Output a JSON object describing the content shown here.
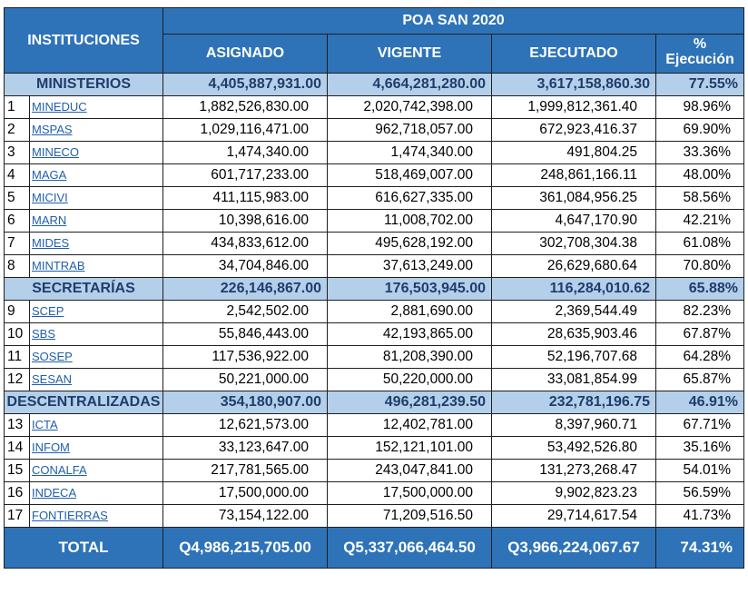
{
  "header": {
    "instituciones": "INSTITUCIONES",
    "title": "POA SAN 2020",
    "col_asignado": "ASIGNADO",
    "col_vigente": "VIGENTE",
    "col_ejecutado": "EJECUTADO",
    "col_pct_symbol": "%",
    "col_pct_label": "Ejecución"
  },
  "sections": [
    {
      "name": "MINISTERIOS",
      "asignado": "4,405,887,931.00",
      "vigente": "4,664,281,280.00",
      "ejecutado": "3,617,158,860.30",
      "pct": "77.55%",
      "rows": [
        {
          "n": "1",
          "inst": "MINEDUC",
          "asignado": "1,882,526,830.00",
          "vigente": "2,020,742,398.00",
          "ejecutado": "1,999,812,361.40",
          "pct": "98.96%"
        },
        {
          "n": "2",
          "inst": "MSPAS",
          "asignado": "1,029,116,471.00",
          "vigente": "962,718,057.00",
          "ejecutado": "672,923,416.37",
          "pct": "69.90%"
        },
        {
          "n": "3",
          "inst": "MINECO",
          "asignado": "1,474,340.00",
          "vigente": "1,474,340.00",
          "ejecutado": "491,804.25",
          "pct": "33.36%"
        },
        {
          "n": "4",
          "inst": "MAGA",
          "asignado": "601,717,233.00",
          "vigente": "518,469,007.00",
          "ejecutado": "248,861,166.11",
          "pct": "48.00%"
        },
        {
          "n": "5",
          "inst": "MICIVI",
          "asignado": "411,115,983.00",
          "vigente": "616,627,335.00",
          "ejecutado": "361,084,956.25",
          "pct": "58.56%"
        },
        {
          "n": "6",
          "inst": "MARN",
          "asignado": "10,398,616.00",
          "vigente": "11,008,702.00",
          "ejecutado": "4,647,170.90",
          "pct": "42.21%"
        },
        {
          "n": "7",
          "inst": "MIDES",
          "asignado": "434,833,612.00",
          "vigente": "495,628,192.00",
          "ejecutado": "302,708,304.38",
          "pct": "61.08%"
        },
        {
          "n": "8",
          "inst": "MINTRAB",
          "asignado": "34,704,846.00",
          "vigente": "37,613,249.00",
          "ejecutado": "26,629,680.64",
          "pct": "70.80%"
        }
      ]
    },
    {
      "name": "SECRETARÍAS",
      "asignado": "226,146,867.00",
      "vigente": "176,503,945.00",
      "ejecutado": "116,284,010.62",
      "pct": "65.88%",
      "rows": [
        {
          "n": "9",
          "inst": "SCEP",
          "asignado": "2,542,502.00",
          "vigente": "2,881,690.00",
          "ejecutado": "2,369,544.49",
          "pct": "82.23%"
        },
        {
          "n": "10",
          "inst": "SBS",
          "asignado": "55,846,443.00",
          "vigente": "42,193,865.00",
          "ejecutado": "28,635,903.46",
          "pct": "67.87%"
        },
        {
          "n": "11",
          "inst": "SOSEP",
          "asignado": "117,536,922.00",
          "vigente": "81,208,390.00",
          "ejecutado": "52,196,707.68",
          "pct": "64.28%"
        },
        {
          "n": "12",
          "inst": "SESAN",
          "asignado": "50,221,000.00",
          "vigente": "50,220,000.00",
          "ejecutado": "33,081,854.99",
          "pct": "65.87%"
        }
      ]
    },
    {
      "name": "DESCENTRALIZADAS",
      "asignado": "354,180,907.00",
      "vigente": "496,281,239.50",
      "ejecutado": "232,781,196.75",
      "pct": "46.91%",
      "rows": [
        {
          "n": "13",
          "inst": "ICTA",
          "asignado": "12,621,573.00",
          "vigente": "12,402,781.00",
          "ejecutado": "8,397,960.71",
          "pct": "67.71%"
        },
        {
          "n": "14",
          "inst": "INFOM",
          "asignado": "33,123,647.00",
          "vigente": "152,121,101.00",
          "ejecutado": "53,492,526.80",
          "pct": "35.16%"
        },
        {
          "n": "15",
          "inst": "CONALFA",
          "asignado": "217,781,565.00",
          "vigente": "243,047,841.00",
          "ejecutado": "131,273,268.47",
          "pct": "54.01%"
        },
        {
          "n": "16",
          "inst": "INDECA",
          "asignado": "17,500,000.00",
          "vigente": "17,500,000.00",
          "ejecutado": "9,902,823.23",
          "pct": "56.59%"
        },
        {
          "n": "17",
          "inst": "FONTIERRAS",
          "asignado": "73,154,122.00",
          "vigente": "71,209,516.50",
          "ejecutado": "29,714,617.54",
          "pct": "41.73%"
        }
      ]
    }
  ],
  "total": {
    "label": "TOTAL",
    "asignado": "Q4,986,215,705.00",
    "vigente": "Q5,337,066,464.50",
    "ejecutado": "Q3,966,224,067.67",
    "pct": "74.31%"
  },
  "colors": {
    "header_bg": "#2e73b8",
    "section_bg": "#b4cfe9",
    "section_text": "#1f3d6b",
    "link": "#1f5fae"
  }
}
